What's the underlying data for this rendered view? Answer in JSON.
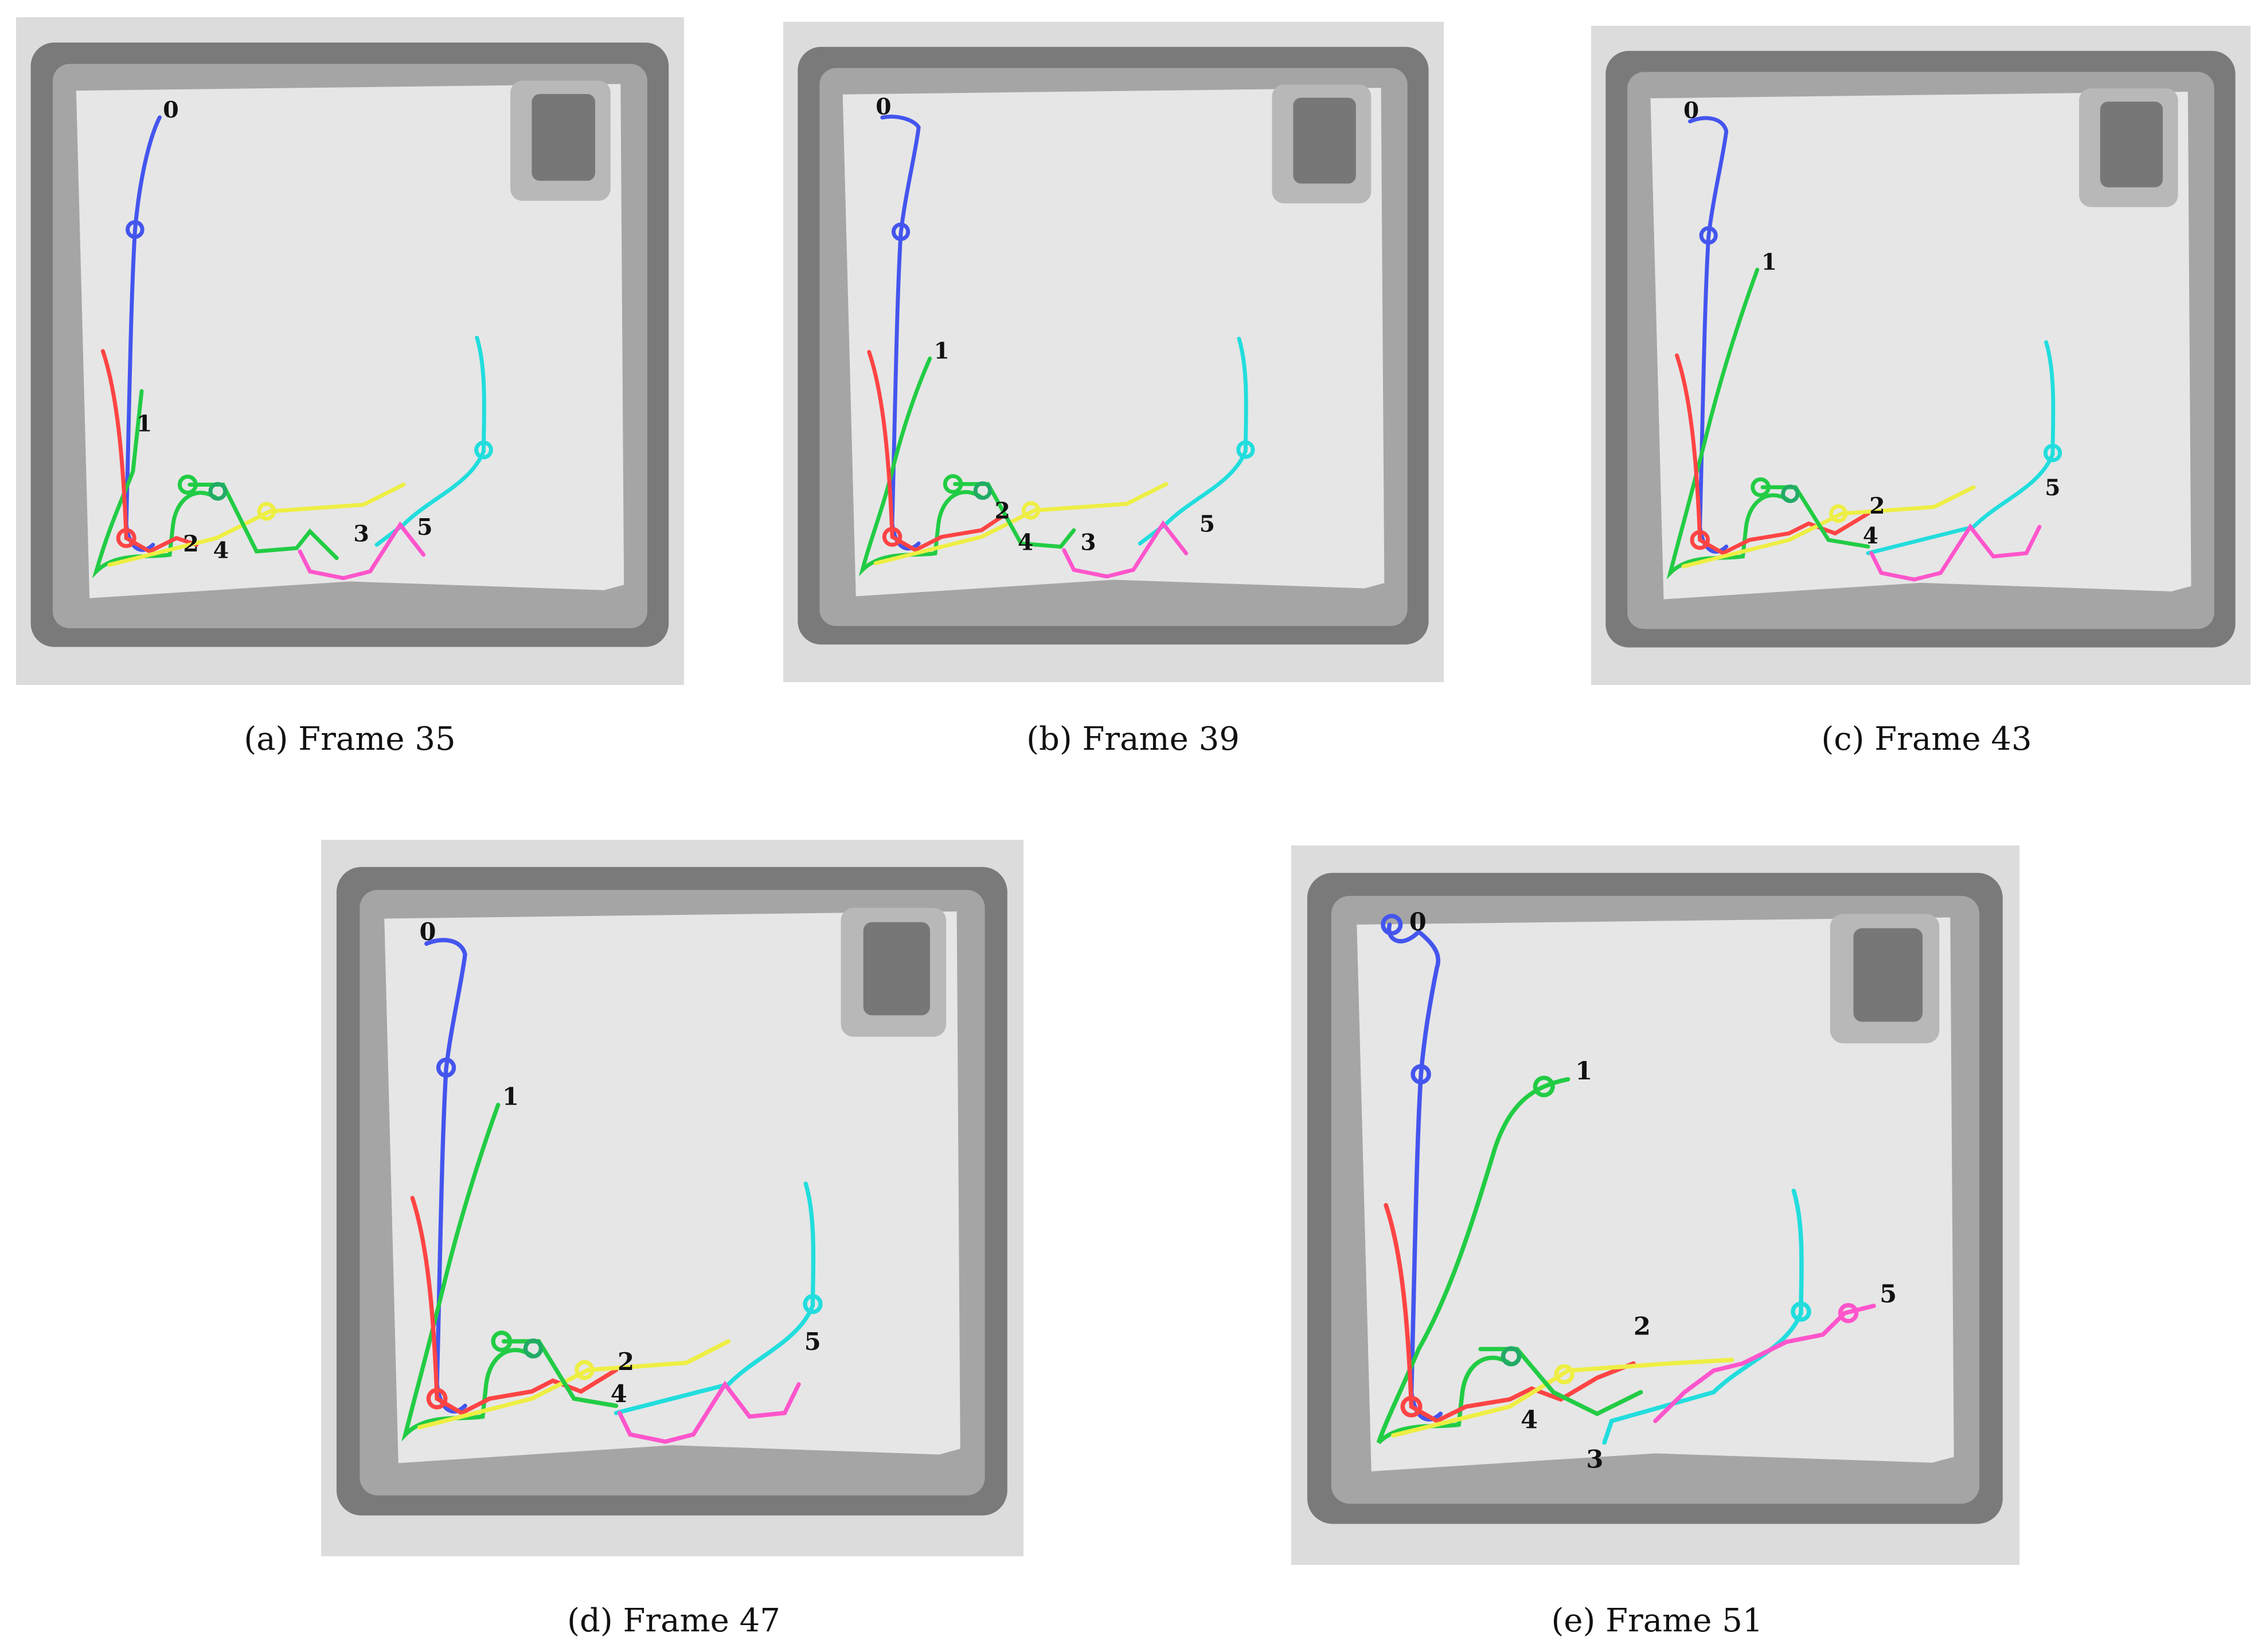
{
  "figure": {
    "panels": [
      {
        "caption": "(a) Frame 35",
        "labels": [
          "0",
          "1",
          "2",
          "4",
          "3",
          "5"
        ]
      },
      {
        "caption": "(b) Frame 39",
        "labels": [
          "0",
          "1",
          "2",
          "4",
          "3",
          "5"
        ]
      },
      {
        "caption": "(c) Frame 43",
        "labels": [
          "0",
          "1",
          "2",
          "4",
          "5"
        ]
      },
      {
        "caption": "(d) Frame 47",
        "labels": [
          "0",
          "1",
          "2",
          "4",
          "5"
        ]
      },
      {
        "caption": "(e) Frame 51",
        "labels": [
          "0",
          "1",
          "2",
          "4",
          "3",
          "5"
        ]
      }
    ],
    "colors": {
      "track_0": "#4455ee",
      "track_1": "#22cc44",
      "track_2": "#ff4444",
      "track_3": "#eeee44",
      "track_4": "#22dddd",
      "track_5": "#ff55cc",
      "arena_outer": "#dcdcdc",
      "arena_floor": "#e6e6e6",
      "arena_wall": "#7a7a7a"
    }
  }
}
